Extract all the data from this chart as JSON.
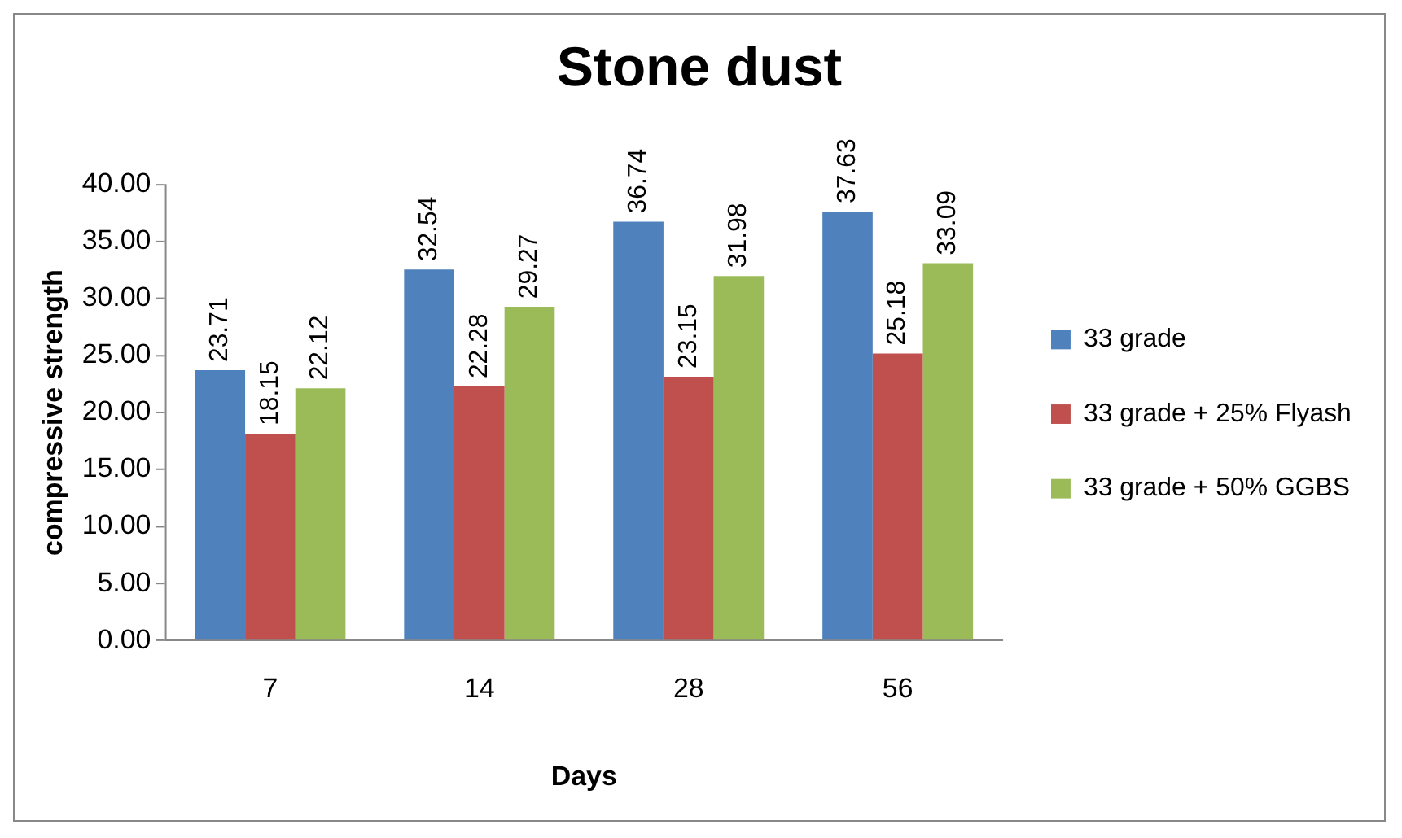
{
  "chart_data": {
    "type": "bar",
    "title": "Stone dust",
    "xlabel": "Days",
    "ylabel": "compressive strength",
    "categories": [
      "7",
      "14",
      "28",
      "56"
    ],
    "series": [
      {
        "name": "33 grade",
        "color": "#4f81bd",
        "values": [
          23.71,
          32.54,
          36.74,
          37.63
        ]
      },
      {
        "name": "33 grade + 25% Flyash",
        "color": "#c0504d",
        "values": [
          18.15,
          22.28,
          23.15,
          25.18
        ]
      },
      {
        "name": "33 grade + 50% GGBS",
        "color": "#9bbb59",
        "values": [
          22.12,
          29.27,
          31.98,
          33.09
        ]
      }
    ],
    "ylim": [
      0,
      40
    ],
    "yticks": [
      {
        "value": 0,
        "label": "0.00"
      },
      {
        "value": 5,
        "label": "5.00"
      },
      {
        "value": 10,
        "label": "10.00"
      },
      {
        "value": 15,
        "label": "15.00"
      },
      {
        "value": 20,
        "label": "20.00"
      },
      {
        "value": 25,
        "label": "25.00"
      },
      {
        "value": 30,
        "label": "30.00"
      },
      {
        "value": 35,
        "label": "35.00"
      },
      {
        "value": 40,
        "label": "40.00"
      }
    ],
    "grid": false,
    "legend": "right",
    "data_labels": true
  }
}
